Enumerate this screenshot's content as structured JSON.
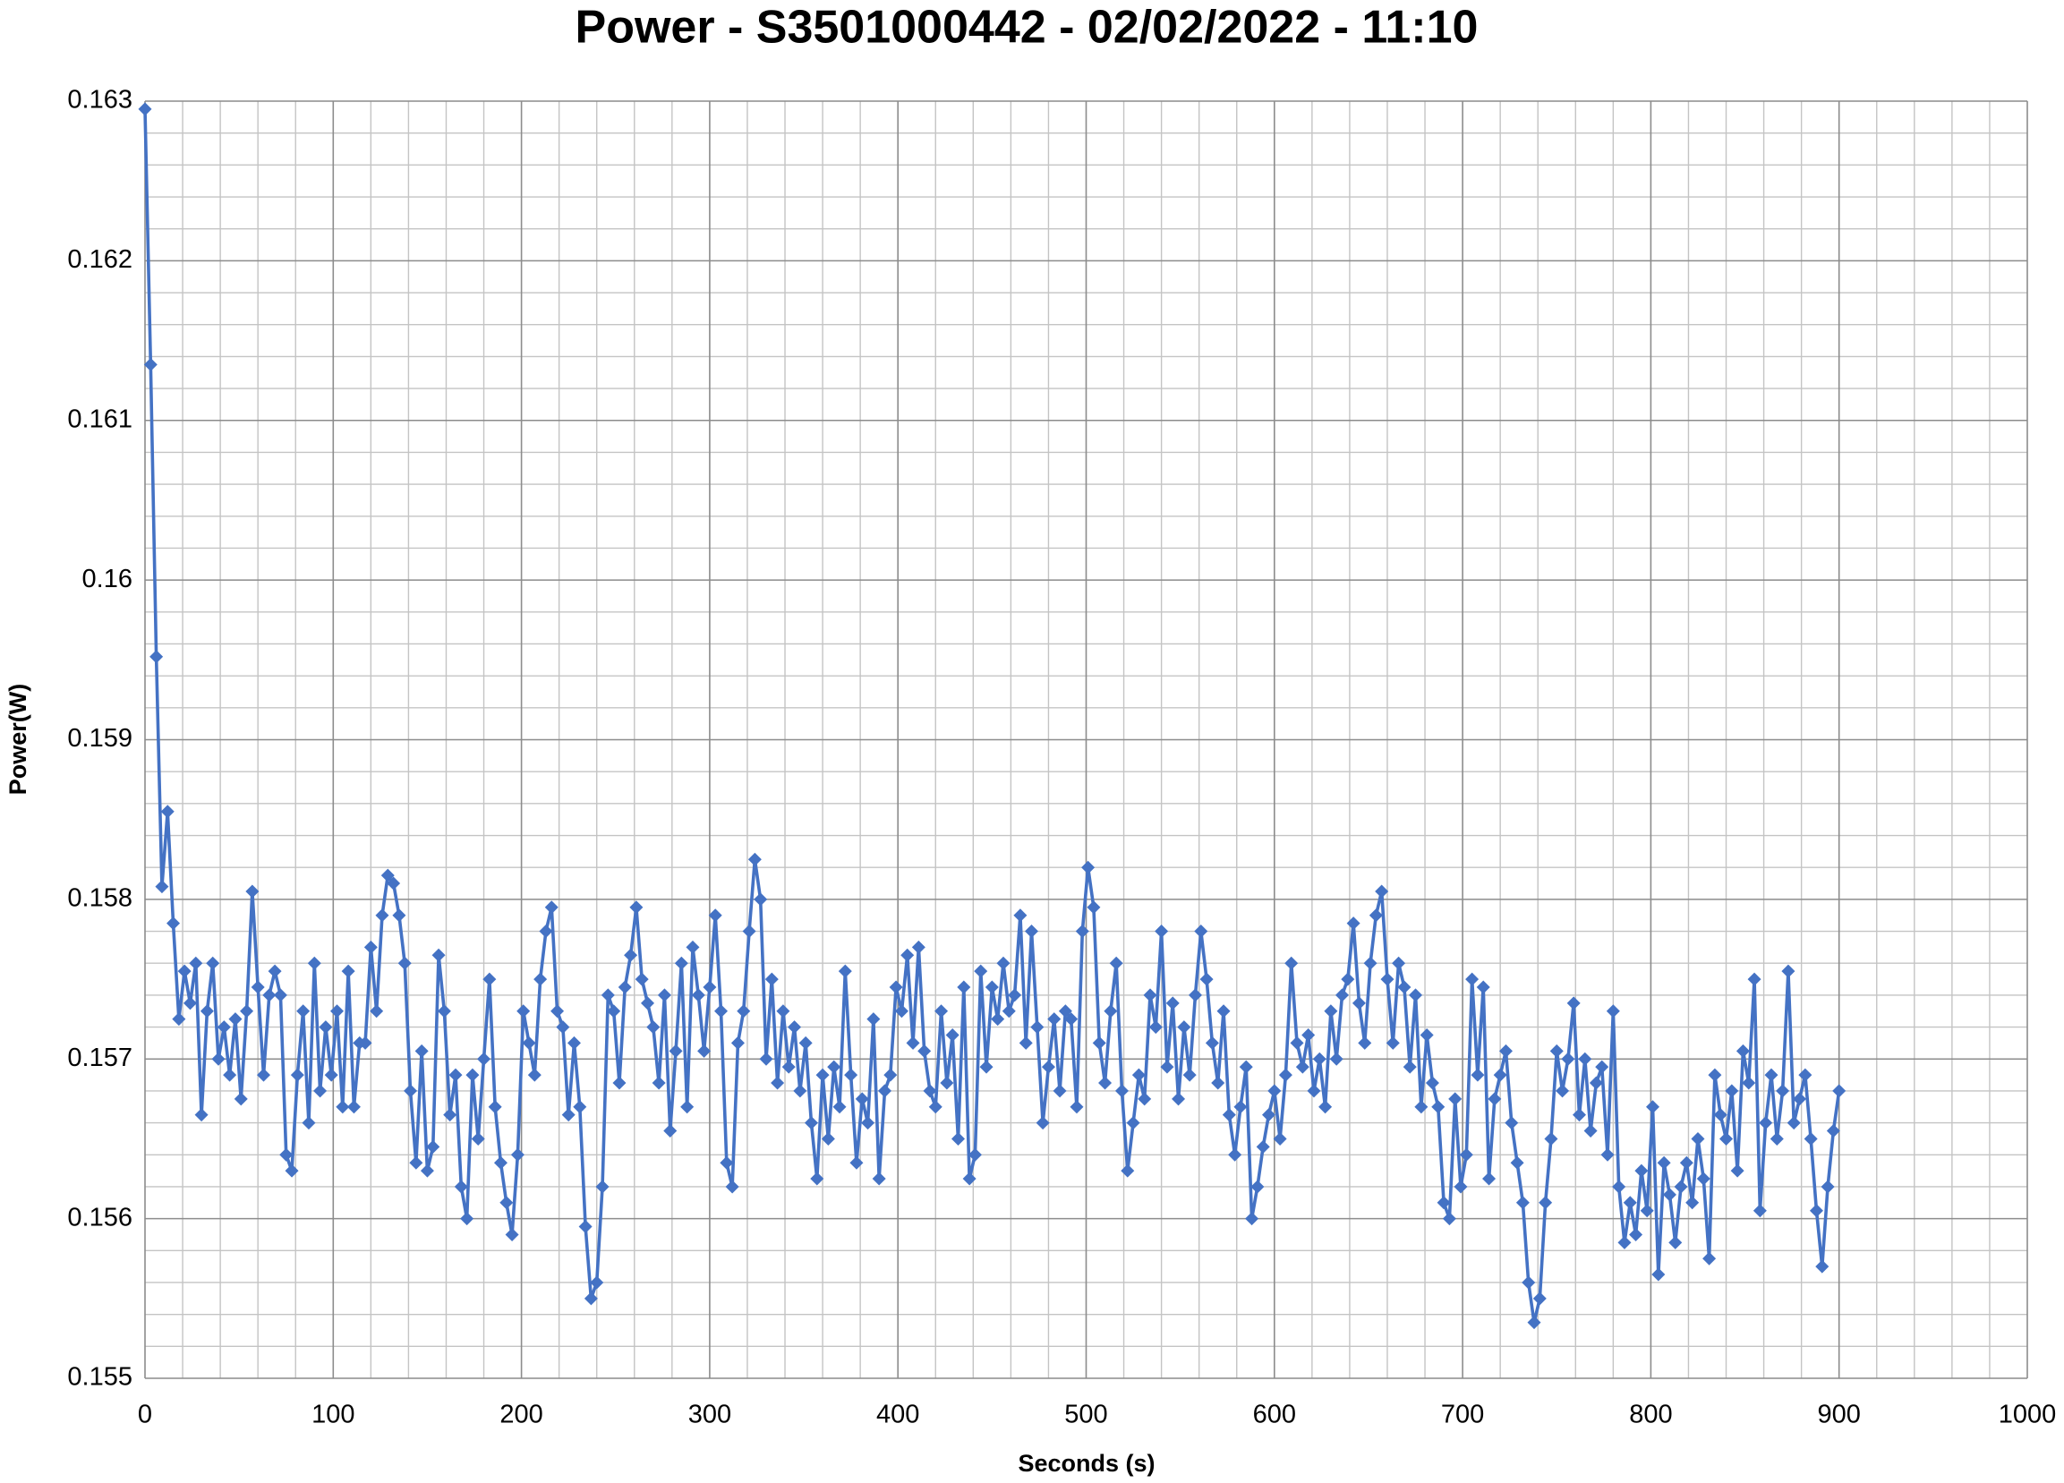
{
  "chart_data": {
    "type": "line",
    "title": "Power - S3501000442 - 02/02/2022 - 11:10",
    "x_label": "Seconds (s)",
    "y_label": "Power(W)",
    "color": "#4472c4",
    "marker": "diamond",
    "grid": true,
    "xlim": [
      0,
      1000
    ],
    "xticks": [
      0,
      100,
      200,
      300,
      400,
      500,
      600,
      700,
      800,
      900,
      1000
    ],
    "ylim": [
      0.155,
      0.163
    ],
    "yticks": [
      0.155,
      0.156,
      0.157,
      0.158,
      0.159,
      0.16,
      0.161,
      0.162,
      0.163
    ],
    "x": [
      0,
      3,
      6,
      9,
      12,
      15,
      18,
      21,
      24,
      27,
      30,
      33,
      36,
      39,
      42,
      45,
      48,
      51,
      54,
      57,
      60,
      63,
      66,
      69,
      72,
      75,
      78,
      81,
      84,
      87,
      90,
      93,
      96,
      99,
      102,
      105,
      108,
      111,
      114,
      117,
      120,
      123,
      126,
      129,
      132,
      135,
      138,
      141,
      144,
      147,
      150,
      153,
      156,
      159,
      162,
      165,
      168,
      171,
      174,
      177,
      180,
      183,
      186,
      189,
      192,
      195,
      198,
      201,
      204,
      207,
      210,
      213,
      216,
      219,
      222,
      225,
      228,
      231,
      234,
      237,
      240,
      243,
      246,
      249,
      252,
      255,
      258,
      261,
      264,
      267,
      270,
      273,
      276,
      279,
      282,
      285,
      288,
      291,
      294,
      297,
      300,
      303,
      306,
      309,
      312,
      315,
      318,
      321,
      324,
      327,
      330,
      333,
      336,
      339,
      342,
      345,
      348,
      351,
      354,
      357,
      360,
      363,
      366,
      369,
      372,
      375,
      378,
      381,
      384,
      387,
      390,
      393,
      396,
      399,
      402,
      405,
      408,
      411,
      414,
      417,
      420,
      423,
      426,
      429,
      432,
      435,
      438,
      441,
      444,
      447,
      450,
      453,
      456,
      459,
      462,
      465,
      468,
      471,
      474,
      477,
      480,
      483,
      486,
      489,
      492,
      495,
      498,
      501,
      504,
      507,
      510,
      513,
      516,
      519,
      522,
      525,
      528,
      531,
      534,
      537,
      540,
      543,
      546,
      549,
      552,
      555,
      558,
      561,
      564,
      567,
      570,
      573,
      576,
      579,
      582,
      585,
      588,
      591,
      594,
      597,
      600,
      603,
      606,
      609,
      612,
      615,
      618,
      621,
      624,
      627,
      630,
      633,
      636,
      639,
      642,
      645,
      648,
      651,
      654,
      657,
      660,
      663,
      666,
      669,
      672,
      675,
      678,
      681,
      684,
      687,
      690,
      693,
      696,
      699,
      702,
      705,
      708,
      711,
      714,
      717,
      720,
      723,
      726,
      729,
      732,
      735,
      738,
      741,
      744,
      747,
      750,
      753,
      756,
      759,
      762,
      765,
      768,
      771,
      774,
      777,
      780,
      783,
      786,
      789,
      792,
      795,
      798,
      801,
      804,
      807,
      810,
      813,
      816,
      819,
      822,
      825,
      828,
      831,
      834,
      837,
      840,
      843,
      846,
      849,
      852,
      855,
      858,
      861,
      864,
      867,
      870,
      873,
      876,
      879,
      882,
      885,
      888,
      891,
      894,
      897,
      900
    ],
    "values": [
      0.16295,
      0.16135,
      0.15952,
      0.15808,
      0.15855,
      0.15785,
      0.15725,
      0.15755,
      0.15735,
      0.1576,
      0.15665,
      0.1573,
      0.1576,
      0.157,
      0.1572,
      0.1569,
      0.15725,
      0.15675,
      0.1573,
      0.15805,
      0.15745,
      0.1569,
      0.1574,
      0.15755,
      0.1574,
      0.1564,
      0.1563,
      0.1569,
      0.1573,
      0.1566,
      0.1576,
      0.1568,
      0.1572,
      0.1569,
      0.1573,
      0.1567,
      0.15755,
      0.1567,
      0.1571,
      0.1571,
      0.1577,
      0.1573,
      0.1579,
      0.15815,
      0.1581,
      0.1579,
      0.1576,
      0.1568,
      0.15635,
      0.15705,
      0.1563,
      0.15645,
      0.15765,
      0.1573,
      0.15665,
      0.1569,
      0.1562,
      0.156,
      0.1569,
      0.1565,
      0.157,
      0.1575,
      0.1567,
      0.15635,
      0.1561,
      0.1559,
      0.1564,
      0.1573,
      0.1571,
      0.1569,
      0.1575,
      0.1578,
      0.15795,
      0.1573,
      0.1572,
      0.15665,
      0.1571,
      0.1567,
      0.15595,
      0.1555,
      0.1556,
      0.1562,
      0.1574,
      0.1573,
      0.15685,
      0.15745,
      0.15765,
      0.15795,
      0.1575,
      0.15735,
      0.1572,
      0.15685,
      0.1574,
      0.15655,
      0.15705,
      0.1576,
      0.1567,
      0.1577,
      0.1574,
      0.15705,
      0.15745,
      0.1579,
      0.1573,
      0.15635,
      0.1562,
      0.1571,
      0.1573,
      0.1578,
      0.15825,
      0.158,
      0.157,
      0.1575,
      0.15685,
      0.1573,
      0.15695,
      0.1572,
      0.1568,
      0.1571,
      0.1566,
      0.15625,
      0.1569,
      0.1565,
      0.15695,
      0.1567,
      0.15755,
      0.1569,
      0.15635,
      0.15675,
      0.1566,
      0.15725,
      0.15625,
      0.1568,
      0.1569,
      0.15745,
      0.1573,
      0.15765,
      0.1571,
      0.1577,
      0.15705,
      0.1568,
      0.1567,
      0.1573,
      0.15685,
      0.15715,
      0.1565,
      0.15745,
      0.15625,
      0.1564,
      0.15755,
      0.15695,
      0.15745,
      0.15725,
      0.1576,
      0.1573,
      0.1574,
      0.1579,
      0.1571,
      0.1578,
      0.1572,
      0.1566,
      0.15695,
      0.15725,
      0.1568,
      0.1573,
      0.15725,
      0.1567,
      0.1578,
      0.1582,
      0.15795,
      0.1571,
      0.15685,
      0.1573,
      0.1576,
      0.1568,
      0.1563,
      0.1566,
      0.1569,
      0.15675,
      0.1574,
      0.1572,
      0.1578,
      0.15695,
      0.15735,
      0.15675,
      0.1572,
      0.1569,
      0.1574,
      0.1578,
      0.1575,
      0.1571,
      0.15685,
      0.1573,
      0.15665,
      0.1564,
      0.1567,
      0.15695,
      0.156,
      0.1562,
      0.15645,
      0.15665,
      0.1568,
      0.1565,
      0.1569,
      0.1576,
      0.1571,
      0.15695,
      0.15715,
      0.1568,
      0.157,
      0.1567,
      0.1573,
      0.157,
      0.1574,
      0.1575,
      0.15785,
      0.15735,
      0.1571,
      0.1576,
      0.1579,
      0.15805,
      0.1575,
      0.1571,
      0.1576,
      0.15745,
      0.15695,
      0.1574,
      0.1567,
      0.15715,
      0.15685,
      0.1567,
      0.1561,
      0.156,
      0.15675,
      0.1562,
      0.1564,
      0.1575,
      0.1569,
      0.15745,
      0.15625,
      0.15675,
      0.1569,
      0.15705,
      0.1566,
      0.15635,
      0.1561,
      0.1556,
      0.15535,
      0.1555,
      0.1561,
      0.1565,
      0.15705,
      0.1568,
      0.157,
      0.15735,
      0.15665,
      0.157,
      0.15655,
      0.15685,
      0.15695,
      0.1564,
      0.1573,
      0.1562,
      0.15585,
      0.1561,
      0.1559,
      0.1563,
      0.15605,
      0.1567,
      0.15565,
      0.15635,
      0.15615,
      0.15585,
      0.1562,
      0.15635,
      0.1561,
      0.1565,
      0.15625,
      0.15575,
      0.1569,
      0.15665,
      0.1565,
      0.1568,
      0.1563,
      0.15705,
      0.15685,
      0.1575,
      0.15605,
      0.1566,
      0.1569,
      0.1565,
      0.1568,
      0.15755,
      0.1566,
      0.15675,
      0.1569,
      0.1565,
      0.15605,
      0.1557,
      0.1562,
      0.15655,
      0.1568
    ]
  }
}
